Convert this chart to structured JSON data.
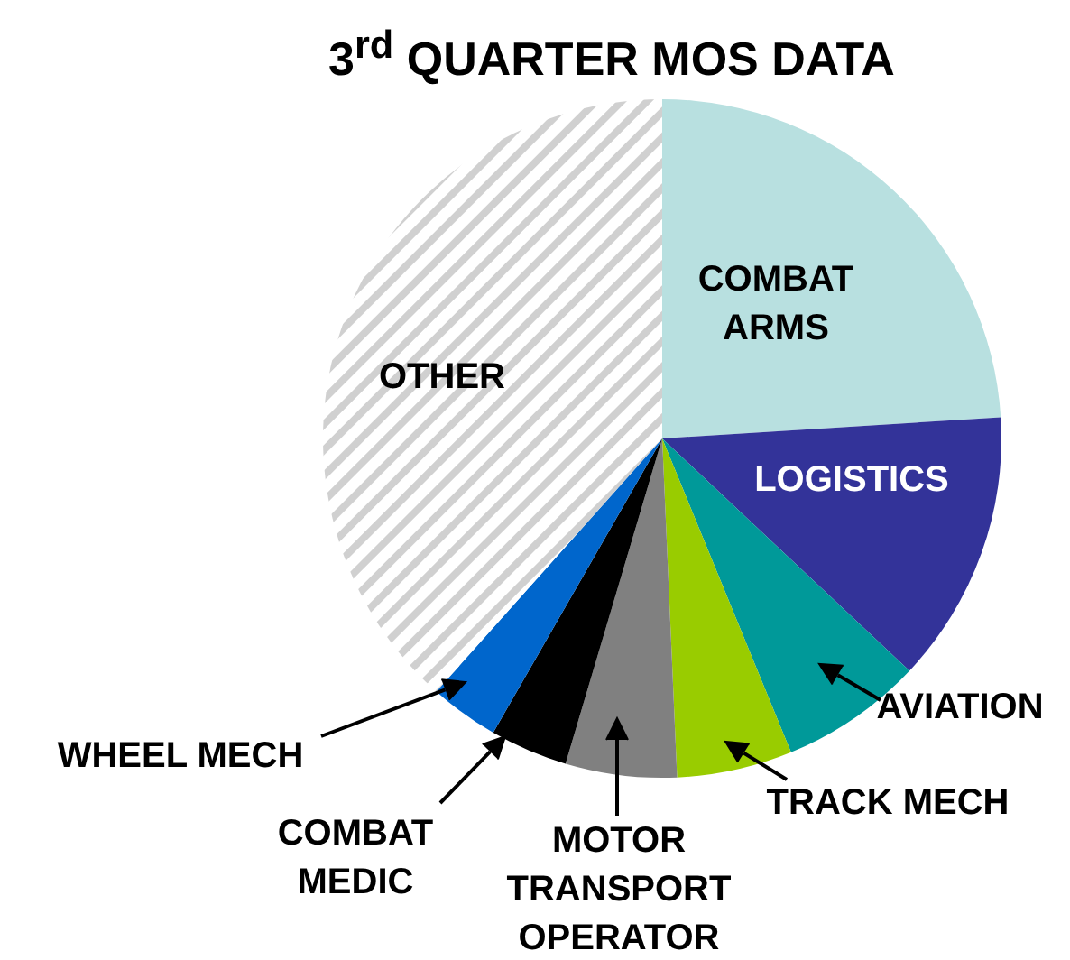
{
  "chart_data": {
    "type": "pie",
    "title": "3$^{rd}$ QUARTER MOS DATA",
    "categories": [
      "COMBAT ARMS",
      "LOGISTICS",
      "AVIATION",
      "TRACK MECH",
      "MOTOR TRANSPORT OPERATOR",
      "COMBAT MEDIC",
      "WHEEL MECH",
      "OTHER"
    ],
    "values": [
      24,
      13,
      6.8,
      5.5,
      5.3,
      3.7,
      3.3,
      38.4
    ],
    "colors": [
      "#b8e0e0",
      "#333399",
      "#009999",
      "#99cc00",
      "#808080",
      "#000000",
      "#0066cc",
      "#d0d0d0"
    ],
    "legend": false
  }
}
